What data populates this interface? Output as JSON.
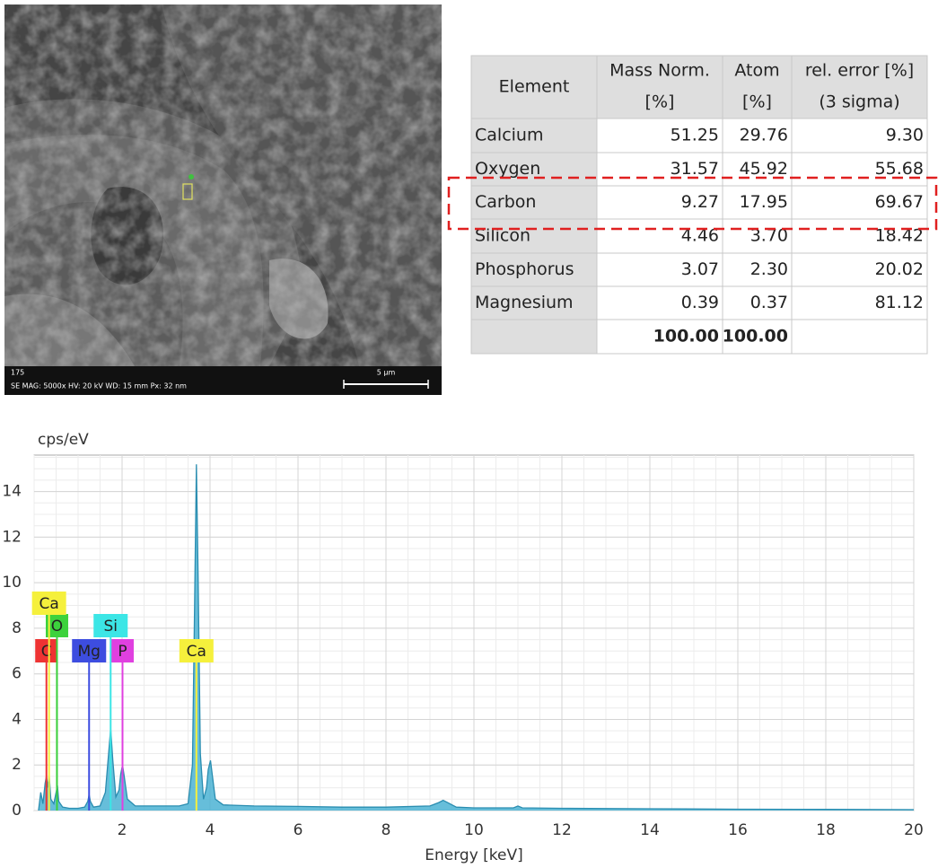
{
  "sem_image": {
    "id": "175",
    "info": "SE  MAG: 5000x  HV: 20 kV  WD: 15 mm  Px: 32 nm",
    "scale_bar": "5 µm"
  },
  "table": {
    "header": [
      [
        "Element"
      ],
      [
        "Mass Norm.",
        "[%]"
      ],
      [
        "Atom",
        "[%]"
      ],
      [
        "rel. error [%]",
        "(3 sigma)"
      ]
    ],
    "rows": [
      [
        "Calcium",
        "51.25",
        "29.76",
        "9.30"
      ],
      [
        "Oxygen",
        "31.57",
        "45.92",
        "55.68"
      ],
      [
        "Carbon",
        "9.27",
        "17.95",
        "69.67"
      ],
      [
        "Silicon",
        "4.46",
        "3.70",
        "18.42"
      ],
      [
        "Phosphorus",
        "3.07",
        "2.30",
        "20.02"
      ],
      [
        "Magnesium",
        "0.39",
        "0.37",
        "81.12"
      ]
    ],
    "totals": [
      "100.00",
      "100.00"
    ]
  },
  "chart_data": {
    "type": "area",
    "y_label": "cps/eV",
    "x_label": "Energy [keV]",
    "xlim": [
      0,
      20
    ],
    "xticks": [
      2,
      4,
      6,
      8,
      10,
      12,
      14,
      16,
      18,
      20
    ],
    "ylim": [
      0,
      15.6
    ],
    "yticks": [
      0,
      2,
      4,
      6,
      8,
      10,
      12,
      14
    ],
    "grid": true,
    "color": "#4bb3d4",
    "x": [
      0.1,
      0.15,
      0.2,
      0.25,
      0.28,
      0.31,
      0.34,
      0.38,
      0.45,
      0.5,
      0.53,
      0.56,
      0.65,
      0.8,
      1.0,
      1.15,
      1.22,
      1.25,
      1.28,
      1.35,
      1.5,
      1.62,
      1.69,
      1.74,
      1.79,
      1.86,
      1.93,
      1.97,
      2.01,
      2.05,
      2.12,
      2.3,
      2.6,
      3.0,
      3.3,
      3.5,
      3.6,
      3.65,
      3.69,
      3.73,
      3.78,
      3.85,
      3.92,
      3.96,
      4.01,
      4.05,
      4.12,
      4.3,
      5,
      6,
      7,
      8,
      9,
      9.2,
      9.3,
      9.4,
      9.6,
      10,
      10.9,
      11,
      11.1,
      12,
      14,
      16,
      18,
      20
    ],
    "values": [
      0,
      0.8,
      0.3,
      1.2,
      1.5,
      1.0,
      1.6,
      0.5,
      0.3,
      0.8,
      1.1,
      0.4,
      0.15,
      0.1,
      0.1,
      0.15,
      0.4,
      0.7,
      0.4,
      0.15,
      0.2,
      0.8,
      2.4,
      3.6,
      2.2,
      0.6,
      0.9,
      1.6,
      2.0,
      1.5,
      0.5,
      0.2,
      0.2,
      0.2,
      0.2,
      0.3,
      2.0,
      9.0,
      15.2,
      10.0,
      2.5,
      0.5,
      1.0,
      1.8,
      2.2,
      1.6,
      0.5,
      0.25,
      0.2,
      0.18,
      0.15,
      0.15,
      0.2,
      0.35,
      0.45,
      0.35,
      0.15,
      0.12,
      0.12,
      0.2,
      0.12,
      0.1,
      0.08,
      0.06,
      0.05,
      0.04
    ],
    "peak_labels": [
      {
        "label": "C",
        "energy": 0.28,
        "color": "#ee3333"
      },
      {
        "label": "Mg",
        "energy": 1.25,
        "color": "#3d4de0"
      },
      {
        "label": "P",
        "energy": 2.01,
        "color": "#e040e0"
      },
      {
        "label": "Ca",
        "energy": 3.69,
        "color": "#f5f03c"
      },
      {
        "label": "O",
        "energy": 0.52,
        "color": "#3cd23c"
      },
      {
        "label": "Si",
        "energy": 1.74,
        "color": "#3ce6e6"
      },
      {
        "label": "Ca",
        "energy": 0.34,
        "color": "#f5f03c"
      }
    ]
  }
}
